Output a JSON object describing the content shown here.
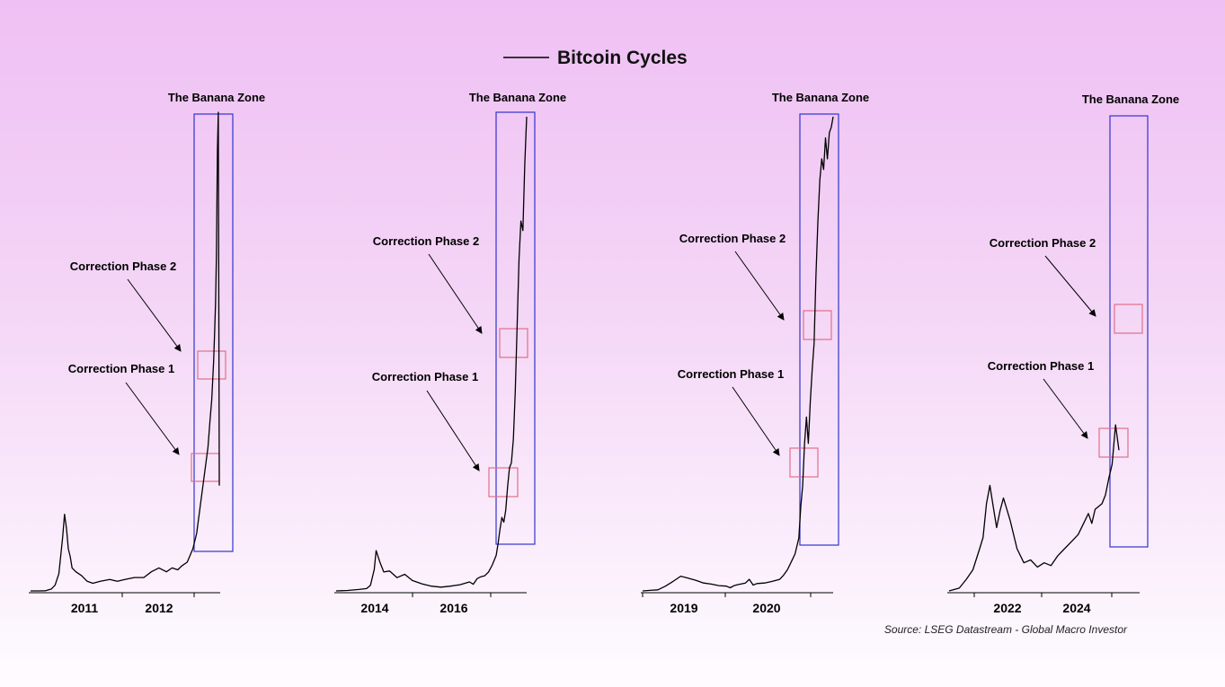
{
  "title": "Bitcoin Cycles",
  "source": "Source: LSEG Datastream - Global Macro Investor",
  "colors": {
    "line": "#000000",
    "banana_zone_box": "#3333cc",
    "correction_box": "#e0708a",
    "background_top": "#efc0f4",
    "background_bottom": "#fefcff"
  },
  "chart_data": [
    {
      "type": "line",
      "panel": 1,
      "x_tick_labels": [
        "2011",
        "2012"
      ],
      "annotations": [
        "The Banana Zone",
        "Correction Phase 2",
        "Correction Phase 1"
      ],
      "series": [
        {
          "x": [
            0,
            4,
            8,
            11,
            13,
            15,
            17,
            18,
            19,
            20,
            21,
            22,
            24,
            27,
            30,
            33,
            37,
            42,
            46,
            50,
            55,
            60,
            64,
            68,
            72,
            75,
            78,
            80,
            83,
            86,
            88,
            90,
            92,
            94,
            95,
            96,
            97,
            97.5,
            98,
            98.5,
            99,
            99.5,
            100
          ],
          "y": [
            0,
            0,
            0.1,
            1,
            3,
            9,
            28,
            40,
            33,
            22,
            18,
            12,
            10,
            8,
            5,
            4,
            5,
            6,
            5,
            6,
            7,
            7,
            10,
            12,
            10,
            12,
            11,
            13,
            15,
            22,
            30,
            45,
            60,
            75,
            88,
            100,
            120,
            135,
            150,
            175,
            230,
            250,
            55
          ]
        }
      ]
    },
    {
      "type": "line",
      "panel": 2,
      "x_tick_labels": [
        "2014",
        "2016"
      ],
      "annotations": [
        "The Banana Zone",
        "Correction Phase 2",
        "Correction Phase 1"
      ],
      "series": [
        {
          "x": [
            0,
            6,
            12,
            16,
            18,
            20,
            21,
            23,
            25,
            28,
            32,
            36,
            40,
            45,
            50,
            55,
            60,
            65,
            70,
            72,
            74,
            76,
            78,
            80,
            82,
            84,
            85,
            86,
            87,
            88,
            89,
            90,
            91,
            92,
            93,
            94,
            95,
            96,
            97,
            98,
            99,
            100
          ],
          "y": [
            0,
            1,
            3,
            5,
            12,
            45,
            85,
            60,
            40,
            42,
            28,
            35,
            22,
            15,
            10,
            8,
            10,
            13,
            19,
            14,
            26,
            30,
            32,
            40,
            55,
            75,
            100,
            130,
            155,
            145,
            170,
            220,
            260,
            270,
            320,
            420,
            560,
            700,
            780,
            760,
            900,
            1000
          ]
        }
      ]
    },
    {
      "type": "line",
      "panel": 3,
      "x_tick_labels": [
        "2019",
        "2020"
      ],
      "annotations": [
        "The Banana Zone",
        "Correction Phase 2",
        "Correction Phase 1"
      ],
      "series": [
        {
          "x": [
            0,
            4,
            8,
            12,
            16,
            20,
            24,
            28,
            32,
            36,
            40,
            44,
            46,
            48,
            50,
            54,
            56,
            58,
            60,
            64,
            68,
            72,
            74,
            76,
            78,
            80,
            82,
            83,
            84,
            85,
            86,
            87,
            88,
            89,
            90,
            91,
            92,
            93,
            94,
            95,
            96,
            97,
            98,
            99,
            100
          ],
          "y": [
            0,
            1,
            2,
            9,
            18,
            28,
            24,
            20,
            15,
            13,
            10,
            9,
            6,
            10,
            12,
            15,
            22,
            11,
            14,
            15,
            18,
            22,
            30,
            40,
            55,
            70,
            100,
            160,
            200,
            280,
            330,
            280,
            360,
            420,
            470,
            600,
            700,
            780,
            820,
            800,
            860,
            820,
            870,
            880,
            900
          ]
        }
      ]
    },
    {
      "type": "line",
      "panel": 4,
      "x_tick_labels": [
        "2022",
        "2024"
      ],
      "annotations": [
        "The Banana Zone",
        "Correction Phase 2",
        "Correction Phase 1"
      ],
      "series": [
        {
          "x": [
            0,
            6,
            10,
            14,
            18,
            20,
            22,
            24,
            26,
            28,
            30,
            32,
            36,
            40,
            44,
            48,
            52,
            56,
            60,
            64,
            68,
            72,
            76,
            80,
            82,
            84,
            86,
            88,
            90,
            92,
            94,
            96,
            98,
            100
          ],
          "y": [
            0,
            2,
            8,
            15,
            30,
            38,
            62,
            75,
            60,
            45,
            57,
            66,
            50,
            30,
            20,
            22,
            17,
            20,
            18,
            25,
            30,
            35,
            40,
            50,
            55,
            48,
            58,
            60,
            62,
            68,
            80,
            90,
            118,
            100
          ]
        }
      ]
    }
  ]
}
